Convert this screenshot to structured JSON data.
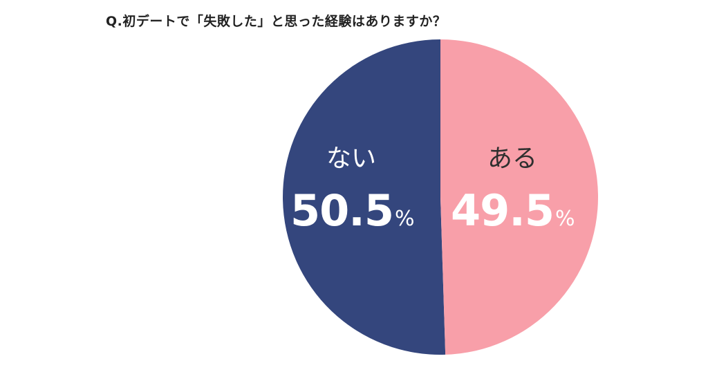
{
  "title": "Q.初デートで「失敗した」と思った経験はありますか？",
  "chart_data": {
    "type": "pie",
    "title": "Q.初デートで「失敗した」と思った経験はありますか？",
    "slices": [
      {
        "label": "ない",
        "value": 50.5,
        "value_text": "50.5",
        "unit": "%",
        "color": "#34467d",
        "label_color": "#ffffff"
      },
      {
        "label": "ある",
        "value": 49.5,
        "value_text": "49.5",
        "unit": "%",
        "color": "#f89fa9",
        "label_color": "#2f2f2f"
      }
    ],
    "start_angle_deg": 0,
    "direction": "counter-clockwise from top for first slice"
  },
  "colors": {
    "background": "#ffffff",
    "title": "#222222",
    "value_text": "#ffffff"
  }
}
